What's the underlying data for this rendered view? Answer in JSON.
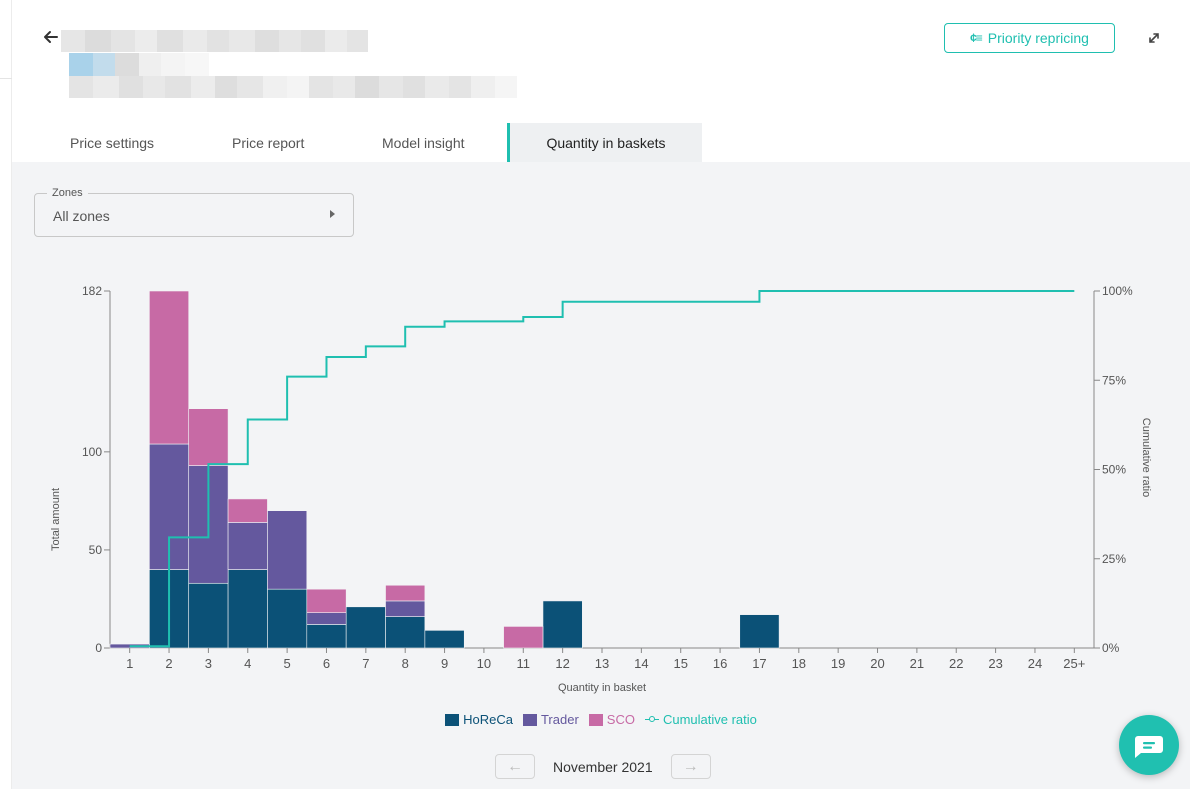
{
  "header": {
    "priority_label": "Priority repricing",
    "icons": {
      "back": "arrow-left-icon",
      "expand": "expand-icon",
      "priority": "priority-repricing-icon"
    }
  },
  "tabs": [
    {
      "label": "Price settings",
      "active": false
    },
    {
      "label": "Price report",
      "active": false
    },
    {
      "label": "Model insight",
      "active": false
    },
    {
      "label": "Quantity in baskets",
      "active": true
    }
  ],
  "zones": {
    "label": "Zones",
    "value": "All zones"
  },
  "chart_data": {
    "type": "bar",
    "stacked": true,
    "xlabel": "Quantity in basket",
    "ylabel": "Total amount",
    "y2label": "Cumulative ratio",
    "categories": [
      "1",
      "2",
      "3",
      "4",
      "5",
      "6",
      "7",
      "8",
      "9",
      "10",
      "11",
      "12",
      "13",
      "14",
      "15",
      "16",
      "17",
      "18",
      "19",
      "20",
      "21",
      "22",
      "23",
      "24",
      "25+"
    ],
    "yticks": [
      0,
      50,
      100,
      182
    ],
    "y2ticks": [
      "0%",
      "25%",
      "50%",
      "75%",
      "100%"
    ],
    "ylim": [
      0,
      182
    ],
    "y2lim": [
      0,
      100
    ],
    "series": [
      {
        "name": "HoReCa",
        "color": "#0b5177",
        "values": [
          0,
          40,
          33,
          40,
          30,
          12,
          21,
          16,
          9,
          0,
          0,
          24,
          0,
          0,
          0,
          0,
          17,
          0,
          0,
          0,
          0,
          0,
          0,
          0,
          0
        ]
      },
      {
        "name": "Trader",
        "color": "#64589e",
        "values": [
          2,
          64,
          60,
          24,
          40,
          6,
          0,
          8,
          0,
          0,
          0,
          0,
          0,
          0,
          0,
          0,
          0,
          0,
          0,
          0,
          0,
          0,
          0,
          0,
          0
        ]
      },
      {
        "name": "SCO",
        "color": "#c76aa5",
        "values": [
          0,
          78,
          29,
          12,
          0,
          12,
          0,
          8,
          0,
          0,
          11,
          0,
          0,
          0,
          0,
          0,
          0,
          0,
          0,
          0,
          0,
          0,
          0,
          0,
          0
        ]
      }
    ],
    "cumulative": {
      "name": "Cumulative ratio",
      "color": "#1fbfb0",
      "values": [
        0.5,
        31,
        51.5,
        64,
        76,
        81.5,
        84.5,
        90,
        91.5,
        91.5,
        92.7,
        97,
        97,
        97,
        97,
        97,
        100,
        100,
        100,
        100,
        100,
        100,
        100,
        100,
        100
      ]
    },
    "grid": false,
    "legend_position": "bottom"
  },
  "pager": {
    "label": "November 2021",
    "prev_icon": "arrow-left-icon",
    "next_icon": "arrow-right-icon"
  },
  "chat": {
    "icon": "chat-icon"
  }
}
